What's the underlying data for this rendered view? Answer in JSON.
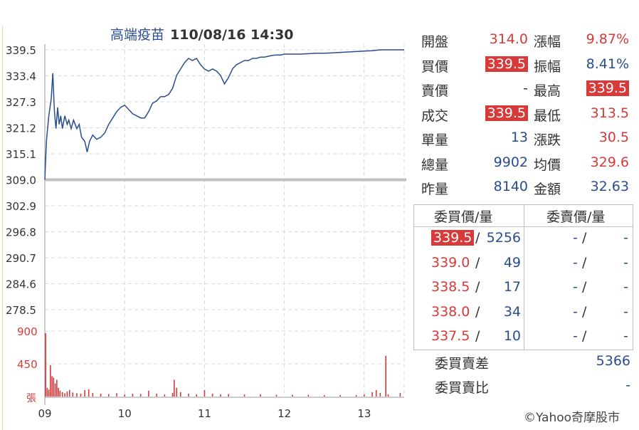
{
  "header": {
    "stock_name": "高端疫苗",
    "datetime": "110/08/16 14:30"
  },
  "quote": {
    "rows": [
      {
        "l1": "開盤",
        "v1": "314.0",
        "l2": "漲幅",
        "v2": "9.87%"
      },
      {
        "l1": "買價",
        "v1": "339.5",
        "l2": "振幅",
        "v2": "8.41%"
      },
      {
        "l1": "賣價",
        "v1": "-",
        "l2": "最高",
        "v2": "339.5"
      },
      {
        "l1": "成交",
        "v1": "339.5",
        "l2": "最低",
        "v2": "313.5"
      },
      {
        "l1": "單量",
        "v1": "13",
        "l2": "漲跌",
        "v2": "30.5"
      },
      {
        "l1": "總量",
        "v1": "9902",
        "l2": "均價",
        "v2": "329.6"
      },
      {
        "l1": "昨量",
        "v1": "8140",
        "l2": "金額",
        "v2": "32.63"
      }
    ]
  },
  "orderbook": {
    "bid_header": "委買價/量",
    "ask_header": "委賣價/量",
    "rows": [
      {
        "bid_price": "339.5",
        "bid_vol": "5256",
        "ask_price": "-",
        "ask_vol": "-"
      },
      {
        "bid_price": "339.0",
        "bid_vol": "49",
        "ask_price": "-",
        "ask_vol": "-"
      },
      {
        "bid_price": "338.5",
        "bid_vol": "17",
        "ask_price": "-",
        "ask_vol": "-"
      },
      {
        "bid_price": "338.0",
        "bid_vol": "34",
        "ask_price": "-",
        "ask_vol": "-"
      },
      {
        "bid_price": "337.5",
        "bid_vol": "10",
        "ask_price": "-",
        "ask_vol": "-"
      }
    ],
    "diff_label": "委買賣差",
    "diff_value": "5366",
    "ratio_label": "委買賣比",
    "ratio_value": "-"
  },
  "copyright": "©Yahoo奇摩股市",
  "colors": {
    "price_line": "#2a4d8f",
    "reference_line": "#c0c0c0",
    "volume_bar": "#d83a3a",
    "up": "#d83a3a",
    "neutral": "#2a4d8f"
  },
  "chart_data": {
    "type": "line",
    "price_axis": {
      "ticks": [
        "339.5",
        "333.4",
        "327.3",
        "321.2",
        "315.1",
        "309.0",
        "302.9",
        "296.8",
        "290.7",
        "284.6",
        "278.5"
      ],
      "ylim": [
        278.5,
        339.5
      ],
      "reference": 309.0
    },
    "volume_axis": {
      "ticks": [
        "900",
        "450"
      ],
      "unit_label": "張",
      "ylim": [
        0,
        900
      ]
    },
    "x_ticks": [
      "09",
      "10",
      "11",
      "12",
      "13"
    ],
    "x_range_hours": [
      9.0,
      13.5
    ],
    "price_series": [
      [
        9.0,
        309.0
      ],
      [
        9.02,
        318
      ],
      [
        9.05,
        324
      ],
      [
        9.08,
        328
      ],
      [
        9.1,
        334
      ],
      [
        9.12,
        325
      ],
      [
        9.14,
        321
      ],
      [
        9.16,
        326
      ],
      [
        9.18,
        322
      ],
      [
        9.2,
        324
      ],
      [
        9.22,
        321
      ],
      [
        9.25,
        324
      ],
      [
        9.28,
        322
      ],
      [
        9.3,
        323
      ],
      [
        9.33,
        321
      ],
      [
        9.36,
        323
      ],
      [
        9.4,
        321
      ],
      [
        9.43,
        322
      ],
      [
        9.46,
        319
      ],
      [
        9.5,
        318
      ],
      [
        9.53,
        315.5
      ],
      [
        9.56,
        318
      ],
      [
        9.6,
        319.5
      ],
      [
        9.65,
        318.5
      ],
      [
        9.7,
        319
      ],
      [
        9.75,
        320
      ],
      [
        9.8,
        322
      ],
      [
        9.85,
        323.5
      ],
      [
        9.9,
        325
      ],
      [
        9.95,
        326
      ],
      [
        10.0,
        326.5
      ],
      [
        10.05,
        325.5
      ],
      [
        10.1,
        324.5
      ],
      [
        10.15,
        324
      ],
      [
        10.2,
        323.5
      ],
      [
        10.25,
        323.5
      ],
      [
        10.3,
        325
      ],
      [
        10.35,
        327
      ],
      [
        10.4,
        327.5
      ],
      [
        10.45,
        328.5
      ],
      [
        10.5,
        328.5
      ],
      [
        10.55,
        329
      ],
      [
        10.6,
        330.5
      ],
      [
        10.65,
        333.5
      ],
      [
        10.7,
        335
      ],
      [
        10.75,
        336.5
      ],
      [
        10.8,
        337.5
      ],
      [
        10.85,
        337
      ],
      [
        10.9,
        337.5
      ],
      [
        10.95,
        336
      ],
      [
        11.0,
        335
      ],
      [
        11.05,
        334.5
      ],
      [
        11.1,
        335
      ],
      [
        11.15,
        334.5
      ],
      [
        11.2,
        333.5
      ],
      [
        11.25,
        331.5
      ],
      [
        11.3,
        333
      ],
      [
        11.35,
        335
      ],
      [
        11.4,
        336
      ],
      [
        11.45,
        336.5
      ],
      [
        11.5,
        337
      ],
      [
        11.55,
        337
      ],
      [
        11.6,
        337.5
      ],
      [
        11.65,
        337.5
      ],
      [
        11.7,
        337.8
      ],
      [
        11.75,
        337.8
      ],
      [
        11.8,
        338
      ],
      [
        11.85,
        338.2
      ],
      [
        11.9,
        338.3
      ],
      [
        11.95,
        338.3
      ],
      [
        12.0,
        338.5
      ],
      [
        12.1,
        338.5
      ],
      [
        12.2,
        338.5
      ],
      [
        12.3,
        338.6
      ],
      [
        12.4,
        338.7
      ],
      [
        12.5,
        338.7
      ],
      [
        12.6,
        338.8
      ],
      [
        12.7,
        338.9
      ],
      [
        12.8,
        339
      ],
      [
        12.9,
        339.1
      ],
      [
        13.0,
        339.2
      ],
      [
        13.1,
        339.3
      ],
      [
        13.15,
        339.4
      ],
      [
        13.2,
        339.5
      ],
      [
        13.3,
        339.5
      ],
      [
        13.4,
        339.5
      ],
      [
        13.5,
        339.5
      ]
    ],
    "volume_series": [
      [
        9.01,
        870
      ],
      [
        9.03,
        120
      ],
      [
        9.05,
        95
      ],
      [
        9.07,
        430
      ],
      [
        9.09,
        280
      ],
      [
        9.11,
        260
      ],
      [
        9.13,
        180
      ],
      [
        9.15,
        230
      ],
      [
        9.17,
        120
      ],
      [
        9.19,
        80
      ],
      [
        9.22,
        60
      ],
      [
        9.25,
        45
      ],
      [
        9.28,
        70
      ],
      [
        9.31,
        90
      ],
      [
        9.35,
        55
      ],
      [
        9.4,
        45
      ],
      [
        9.45,
        40
      ],
      [
        9.5,
        90
      ],
      [
        9.55,
        100
      ],
      [
        9.6,
        50
      ],
      [
        9.7,
        40
      ],
      [
        9.8,
        35
      ],
      [
        9.9,
        45
      ],
      [
        10.0,
        30
      ],
      [
        10.1,
        40
      ],
      [
        10.2,
        35
      ],
      [
        10.3,
        80
      ],
      [
        10.4,
        40
      ],
      [
        10.5,
        30
      ],
      [
        10.6,
        50
      ],
      [
        10.62,
        230
      ],
      [
        10.65,
        120
      ],
      [
        10.7,
        60
      ],
      [
        10.8,
        40
      ],
      [
        10.9,
        30
      ],
      [
        11.0,
        90
      ],
      [
        11.1,
        40
      ],
      [
        11.2,
        30
      ],
      [
        11.3,
        35
      ],
      [
        11.5,
        30
      ],
      [
        11.7,
        30
      ],
      [
        11.9,
        25
      ],
      [
        12.1,
        25
      ],
      [
        12.3,
        25
      ],
      [
        12.5,
        20
      ],
      [
        12.7,
        20
      ],
      [
        12.9,
        20
      ],
      [
        13.0,
        30
      ],
      [
        13.1,
        60
      ],
      [
        13.15,
        90
      ],
      [
        13.2,
        50
      ],
      [
        13.27,
        560
      ],
      [
        13.3,
        30
      ],
      [
        13.45,
        50
      ]
    ]
  }
}
